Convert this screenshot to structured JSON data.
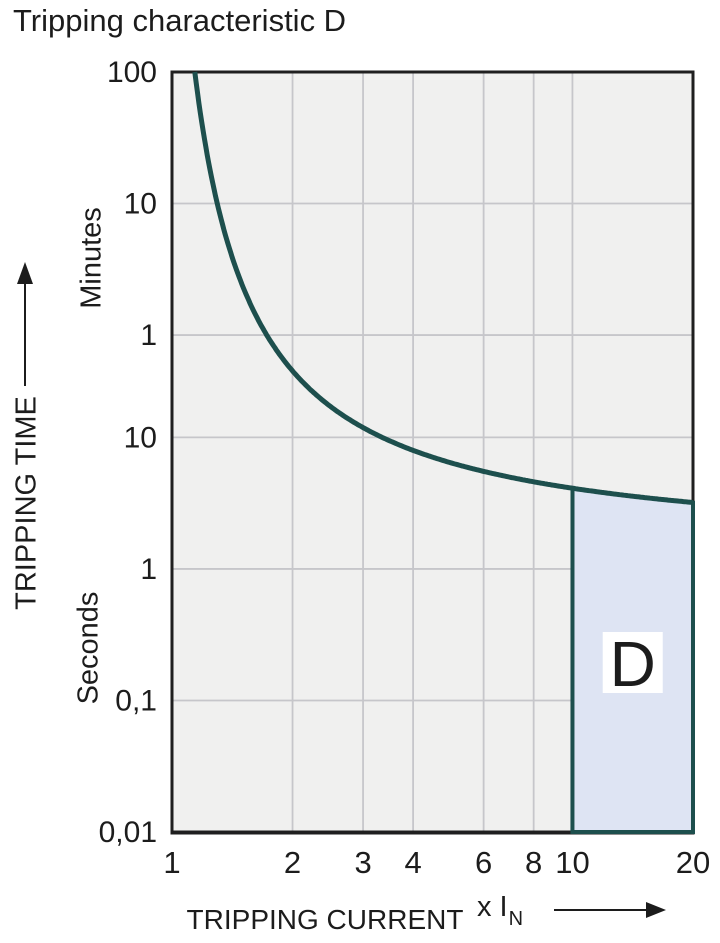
{
  "title": "Tripping characteristic D",
  "y_axis": {
    "title": "TRIPPING TIME",
    "minutes_label": "Minutes",
    "seconds_label": "Seconds"
  },
  "x_axis": {
    "title": "TRIPPING CURRENT",
    "unit_main": "x I",
    "unit_sub": "N"
  },
  "chart_data": {
    "type": "line",
    "x_scale": "log",
    "y_scale": "log",
    "x_range": [
      1,
      20
    ],
    "y_range_seconds": [
      0.01,
      6000
    ],
    "x_ticks": [
      {
        "label": "1",
        "value": 1
      },
      {
        "label": "2",
        "value": 2
      },
      {
        "label": "3",
        "value": 3
      },
      {
        "label": "4",
        "value": 4
      },
      {
        "label": "6",
        "value": 6
      },
      {
        "label": "8",
        "value": 8
      },
      {
        "label": "10",
        "value": 10
      },
      {
        "label": "20",
        "value": 20
      }
    ],
    "y_ticks": [
      {
        "label": "100",
        "seconds": 6000,
        "group": "Minutes"
      },
      {
        "label": "10",
        "seconds": 600,
        "group": "Minutes"
      },
      {
        "label": "1",
        "seconds": 60,
        "group": "Minutes"
      },
      {
        "label": "10",
        "seconds": 10,
        "group": "Seconds"
      },
      {
        "label": "1",
        "seconds": 1,
        "group": "Seconds"
      },
      {
        "label": "0,1",
        "seconds": 0.1,
        "group": "Seconds"
      },
      {
        "label": "0,01",
        "seconds": 0.01,
        "group": "Seconds"
      }
    ],
    "curve_points": [
      [
        1.14,
        6000
      ],
      [
        1.3,
        600
      ],
      [
        1.78,
        60
      ],
      [
        2.0,
        37
      ],
      [
        2.3,
        23.5
      ],
      [
        3.0,
        13.3
      ],
      [
        3.35,
        10
      ],
      [
        4,
        7.7
      ],
      [
        6,
        5.0
      ],
      [
        8,
        4.4
      ],
      [
        10,
        4.0
      ],
      [
        13,
        3.7
      ],
      [
        20,
        3.2
      ]
    ],
    "curve_model": {
      "form": "log10(t) = a + b / (log10(I) - c)",
      "a": 0.1111,
      "b": 0.5493,
      "c": -0.0929,
      "t_start": 6000,
      "x_end": 20
    },
    "region": {
      "label": "D",
      "x_from": 10,
      "x_to": 20,
      "t_bottom": 0.01
    },
    "colors": {
      "curve": "#1d4f4d",
      "region_fill": "#dee4f3",
      "region_border": "#1d4f4d",
      "plot_bg": "#f0f0ef",
      "gridline": "#c6c6ca",
      "frame": "#1f1f1f",
      "text": "#1c1c1c",
      "label_box": "#ffffff"
    }
  }
}
